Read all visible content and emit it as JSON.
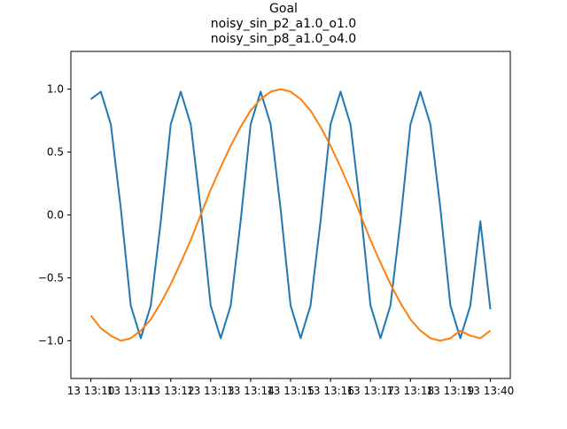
{
  "chart_data": {
    "type": "line",
    "title_lines": [
      "Goal",
      "noisy_sin_p2_a1.0_o1.0",
      "noisy_sin_p8_a1.0_o4.0"
    ],
    "xlabel": "",
    "ylabel": "",
    "xlim": [
      -0.5,
      10.5
    ],
    "ylim": [
      -1.3,
      1.3
    ],
    "grid": false,
    "legend": "none",
    "x_ticks": [
      {
        "x": 0,
        "label": "13 13:10"
      },
      {
        "x": 1,
        "label": "13 13:11"
      },
      {
        "x": 2,
        "label": "13 13:12"
      },
      {
        "x": 3,
        "label": "13 13:13"
      },
      {
        "x": 4,
        "label": "13 13:14"
      },
      {
        "x": 5,
        "label": "13 13:15"
      },
      {
        "x": 6,
        "label": "13 13:16"
      },
      {
        "x": 7,
        "label": "13 13:17"
      },
      {
        "x": 8,
        "label": "13 13:18"
      },
      {
        "x": 9,
        "label": "13 13:19"
      },
      {
        "x": 10,
        "label": "13 13:40"
      }
    ],
    "y_ticks": [
      {
        "y": 1.0,
        "label": "1.0"
      },
      {
        "y": 0.5,
        "label": "0.5"
      },
      {
        "y": 0.0,
        "label": "0.0"
      },
      {
        "y": -0.5,
        "label": "−0.5"
      },
      {
        "y": -1.0,
        "label": "−1.0"
      }
    ],
    "series": [
      {
        "color": "#1f77b4",
        "x": [
          0,
          0.25,
          0.5,
          0.75,
          1,
          1.25,
          1.5,
          1.75,
          2,
          2.25,
          2.5,
          2.75,
          3,
          3.25,
          3.5,
          3.75,
          4,
          4.25,
          4.5,
          4.75,
          5,
          5.25,
          5.5,
          5.75,
          6,
          6.25,
          6.5,
          6.75,
          7,
          7.25,
          7.5,
          7.75,
          8,
          8.25,
          8.5,
          8.75,
          9,
          9.25,
          9.5,
          9.75,
          10
        ],
        "y": [
          0.92,
          0.98,
          0.72,
          0.05,
          -0.72,
          -0.98,
          -0.72,
          -0.05,
          0.72,
          0.98,
          0.72,
          0.05,
          -0.72,
          -0.98,
          -0.72,
          -0.05,
          0.72,
          0.98,
          0.72,
          0.05,
          -0.72,
          -0.98,
          -0.72,
          -0.05,
          0.72,
          0.98,
          0.72,
          0.05,
          -0.72,
          -0.98,
          -0.72,
          -0.05,
          0.72,
          0.98,
          0.72,
          0.05,
          -0.72,
          -0.98,
          -0.72,
          -0.05,
          -0.75
        ]
      },
      {
        "color": "#ff7f0e",
        "x": [
          0,
          0.25,
          0.5,
          0.75,
          1,
          1.25,
          1.5,
          1.75,
          2,
          2.25,
          2.5,
          2.75,
          3,
          3.25,
          3.5,
          3.75,
          4,
          4.25,
          4.5,
          4.75,
          5,
          5.25,
          5.5,
          5.75,
          6,
          6.25,
          6.5,
          6.75,
          7,
          7.25,
          7.5,
          7.75,
          8,
          8.25,
          8.5,
          8.75,
          9,
          9.25,
          9.5,
          9.75,
          10
        ],
        "y": [
          -0.8,
          -0.9,
          -0.96,
          -1.0,
          -0.98,
          -0.92,
          -0.83,
          -0.7,
          -0.55,
          -0.38,
          -0.2,
          0.0,
          0.2,
          0.38,
          0.55,
          0.7,
          0.83,
          0.92,
          0.98,
          1.0,
          0.98,
          0.92,
          0.83,
          0.7,
          0.55,
          0.38,
          0.2,
          0.0,
          -0.2,
          -0.38,
          -0.55,
          -0.7,
          -0.83,
          -0.92,
          -0.98,
          -1.0,
          -0.98,
          -0.92,
          -0.96,
          -0.98,
          -0.92
        ]
      }
    ]
  }
}
